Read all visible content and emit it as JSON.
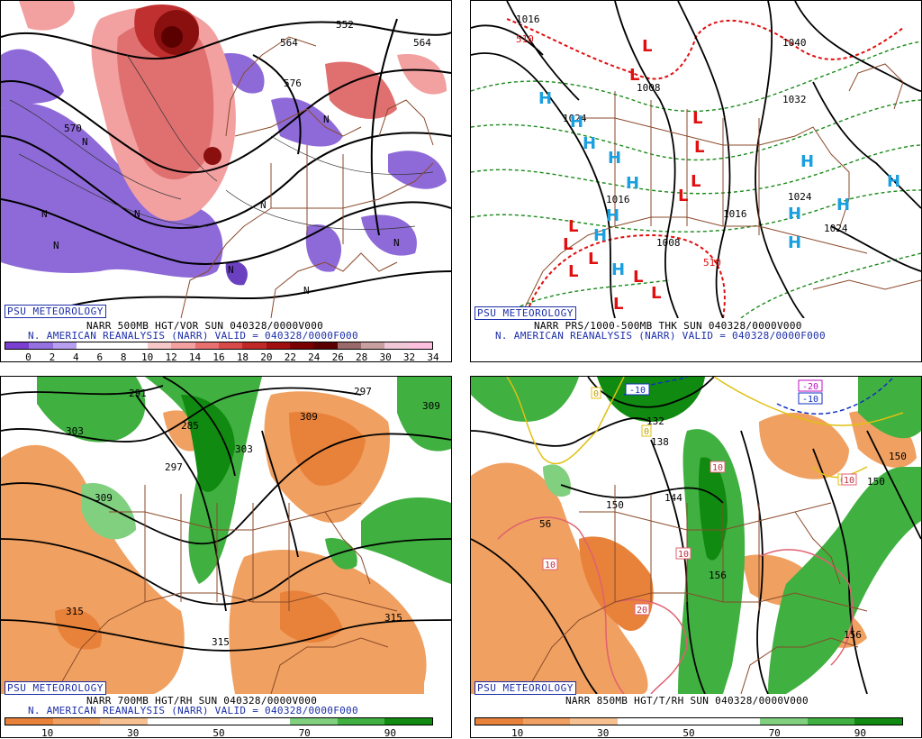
{
  "panels": [
    {
      "badge": "PSU METEOROLOGY",
      "line1": "NARR 500MB HGT/VOR SUN 040328/0000V000",
      "line2": "N. AMERICAN REANALYSIS (NARR) VALID = 040328/0000F000",
      "colorbar": {
        "colors": [
          "#7a3fd0",
          "#9570e0",
          "#b79ef0",
          "#ffffff",
          "#ffffff",
          "#ffffff",
          "#f6c8c8",
          "#f2a0a0",
          "#e87070",
          "#d84a4a",
          "#c02828",
          "#a01010",
          "#7a0000",
          "#5a0000",
          "#9a6a6a",
          "#c8a0a0",
          "#f0c8d8",
          "#ffc0e0"
        ],
        "ticks": [
          "0",
          "2",
          "4",
          "6",
          "8",
          "10",
          "12",
          "14",
          "16",
          "18",
          "20",
          "22",
          "24",
          "26",
          "28",
          "30",
          "32",
          "34"
        ]
      },
      "map_labels": [
        "552",
        "564",
        "576",
        "570",
        "564",
        "N",
        "N",
        "N",
        "N",
        "N",
        "N",
        "N",
        "N",
        "N"
      ]
    },
    {
      "badge": "PSU METEOROLOGY",
      "line1": "NARR PRS/1000-500MB THK SUN 040328/0000V000",
      "line2": "N. AMERICAN REANALYSIS (NARR) VALID = 040328/0000F000",
      "map_labels": [
        "1016",
        "1008",
        "1024",
        "1016",
        "1016",
        "1008",
        "1032",
        "1040",
        "1024",
        "1024",
        "510",
        "510"
      ],
      "highs": [
        "H",
        "H",
        "H",
        "H",
        "H",
        "H",
        "H",
        "H",
        "H",
        "H",
        "H",
        "H",
        "H"
      ],
      "lows": [
        "L",
        "L",
        "L",
        "L",
        "L",
        "L",
        "L",
        "L",
        "L",
        "L",
        "L",
        "L",
        "L"
      ]
    },
    {
      "badge": "PSU METEOROLOGY",
      "line1": "NARR 700MB HGT/RH SUN 040328/0000V000",
      "line2": "N. AMERICAN REANALYSIS (NARR) VALID = 040328/0000F000",
      "colorbar": {
        "colors": [
          "#e8823a",
          "#f0a060",
          "#f6c090",
          "#ffffff",
          "#ffffff",
          "#ffffff",
          "#80d080",
          "#40b040",
          "#108a10"
        ],
        "ticks": [
          "10",
          "30",
          "50",
          "70",
          "90"
        ]
      },
      "map_labels": [
        "291",
        "285",
        "303",
        "297",
        "309",
        "303",
        "309",
        "297",
        "309",
        "315",
        "315",
        "315"
      ]
    },
    {
      "badge": "PSU METEOROLOGY",
      "line1": "NARR 850MB HGT/T/RH SUN 040328/0000V000",
      "line2": "",
      "colorbar": {
        "colors": [
          "#e8823a",
          "#f0a060",
          "#f6c090",
          "#ffffff",
          "#ffffff",
          "#ffffff",
          "#80d080",
          "#40b040",
          "#108a10"
        ],
        "ticks": [
          "10",
          "30",
          "50",
          "70",
          "90"
        ]
      },
      "map_labels": [
        "132",
        "138",
        "144",
        "150",
        "150",
        "156",
        "150",
        "156",
        "-10",
        "-10",
        "-20",
        "0",
        "0",
        "0",
        "10",
        "10",
        "10",
        "20",
        "10",
        "56"
      ]
    }
  ]
}
